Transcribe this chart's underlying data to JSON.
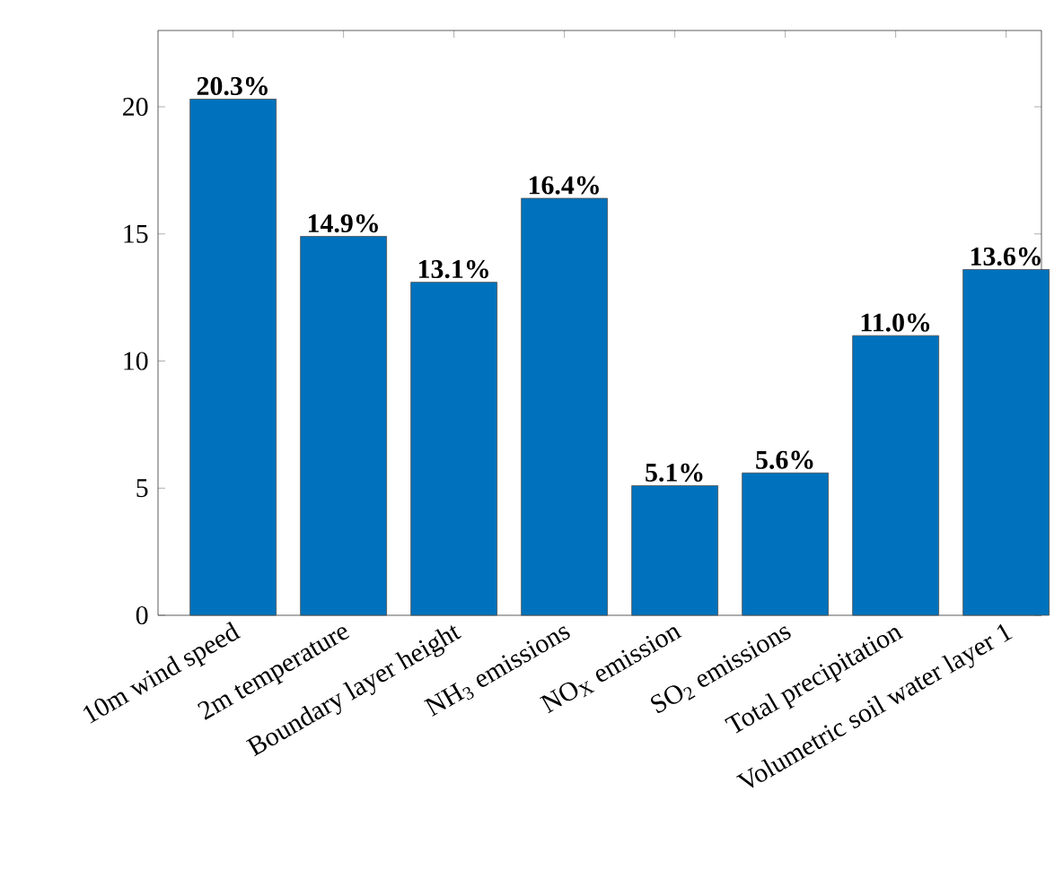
{
  "chart_data": {
    "type": "bar",
    "categories": [
      "10m wind speed",
      "2m temperature",
      "Boundary layer height",
      "NH$_{3}$ emissions",
      "NO$_{X}$ emission",
      "SO$_{2}$ emissions",
      "Total precipitation",
      "Volumetric soil water layer 1"
    ],
    "values": [
      20.3,
      14.9,
      13.1,
      16.4,
      5.1,
      5.6,
      11.0,
      13.6
    ],
    "value_labels": [
      "20.3%",
      "14.9%",
      "13.1%",
      "16.4%",
      "5.1%",
      "5.6%",
      "11.0%",
      "13.6%"
    ],
    "color": "#0072bd",
    "ylim": [
      0,
      23
    ],
    "yticks": [
      0,
      5,
      10,
      15,
      20
    ]
  }
}
